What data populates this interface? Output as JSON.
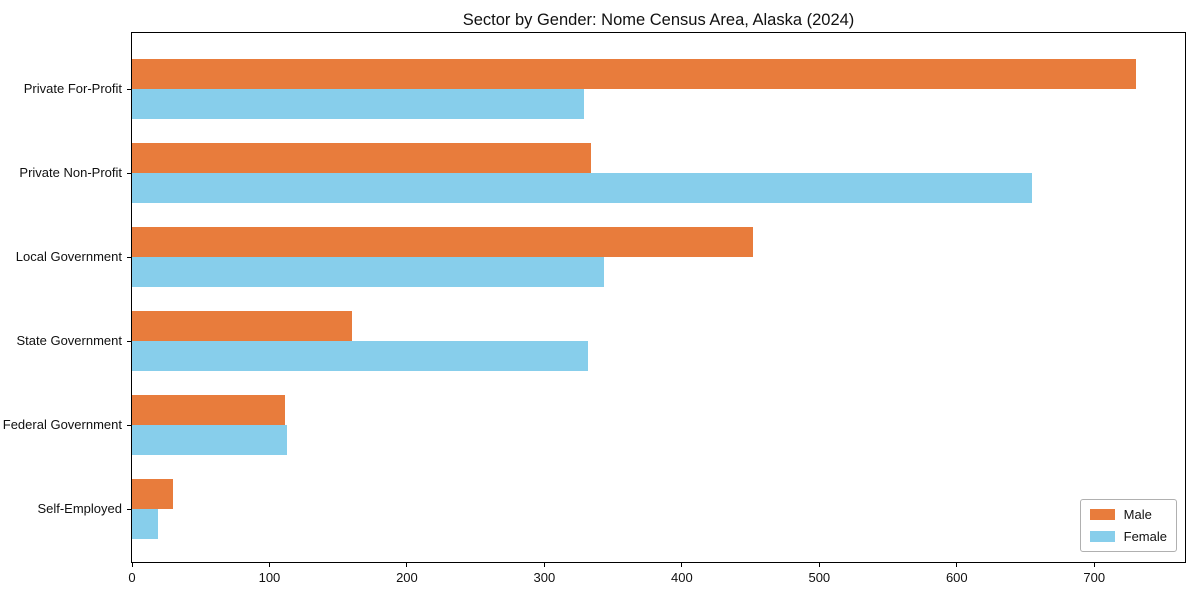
{
  "chart_data": {
    "type": "bar",
    "orientation": "horizontal",
    "title": "Sector by Gender: Nome Census Area, Alaska (2024)",
    "xlabel": "",
    "ylabel": "",
    "categories": [
      "Private For-Profit",
      "Private Non-Profit",
      "Local Government",
      "State Government",
      "Federal Government",
      "Self-Employed"
    ],
    "series": [
      {
        "name": "Male",
        "color": "#e87c3c",
        "values": [
          730,
          334,
          452,
          160,
          111,
          30
        ]
      },
      {
        "name": "Female",
        "color": "#87ceeb",
        "values": [
          329,
          655,
          343,
          332,
          113,
          19
        ]
      }
    ],
    "xlim": [
      0,
      766
    ],
    "x_ticks": [
      0,
      100,
      200,
      300,
      400,
      500,
      600,
      700
    ],
    "grid": false,
    "legend_position": "lower right",
    "colors": {
      "background": "#ffffff",
      "spine": "#000000",
      "text": "#111111",
      "legend_border": "#b0b0b0"
    }
  }
}
